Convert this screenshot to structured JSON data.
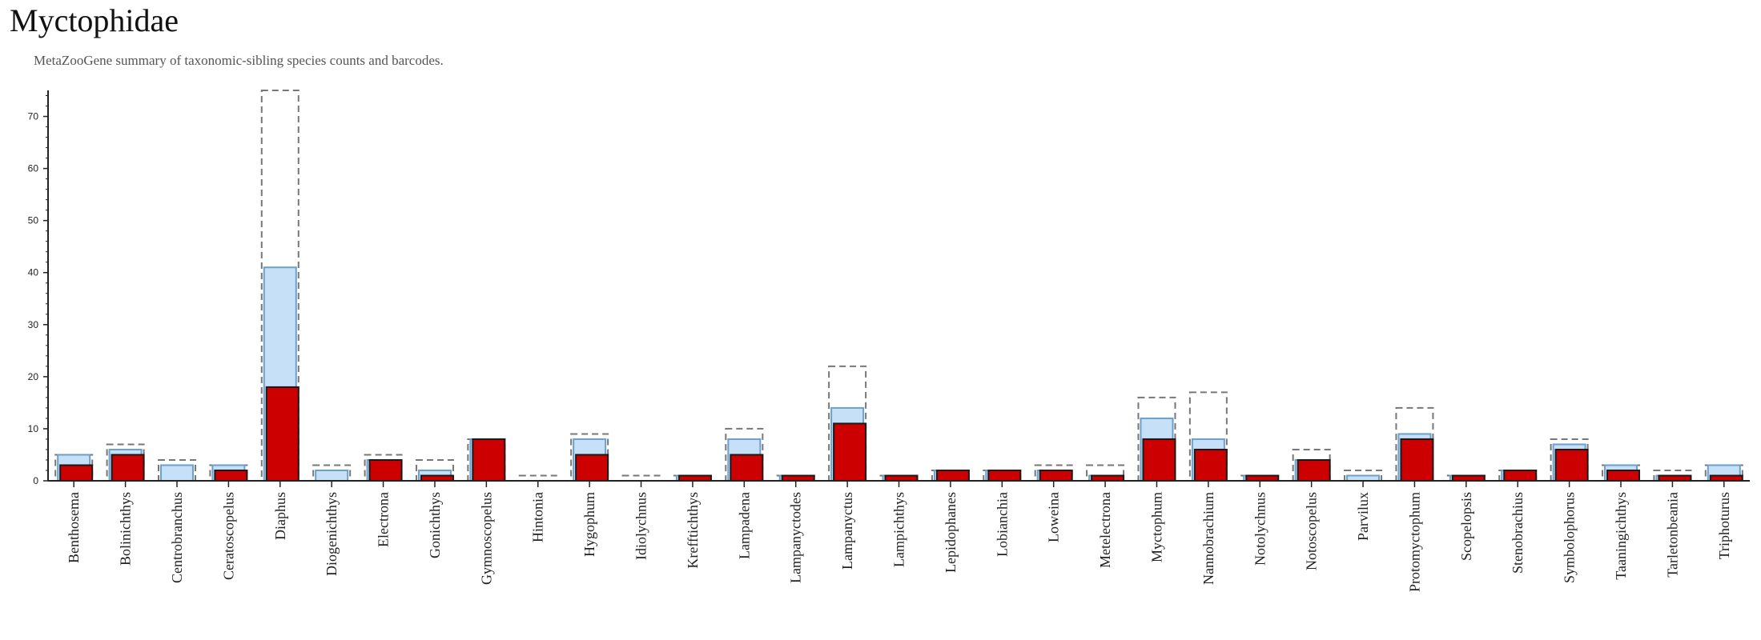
{
  "header": {
    "title": "Myctophidae",
    "subtitle": "MetaZooGene summary of taxonomic-sibling species counts and barcodes."
  },
  "colors": {
    "total_outline": "#777777",
    "light_fill": "#c6e0f8",
    "light_stroke": "#6d9fcb",
    "barcoded_fill": "#cc0000",
    "barcoded_stroke": "#1a1a1a",
    "axis": "#222222"
  },
  "chart_data": {
    "type": "bar",
    "title": "",
    "xlabel": "",
    "ylabel": "",
    "ylim": [
      0,
      75
    ],
    "yticks": [
      0,
      10,
      20,
      30,
      40,
      50,
      60,
      70
    ],
    "grid": false,
    "categories": [
      "Benthosema",
      "Bolinichthys",
      "Centrobranchus",
      "Ceratoscopelus",
      "Diaphus",
      "Diogenichthys",
      "Electrona",
      "Gonichthys",
      "Gymnoscopelus",
      "Hintonia",
      "Hygophum",
      "Idiolychnus",
      "Krefftichthys",
      "Lampadena",
      "Lampanyctodes",
      "Lampanyctus",
      "Lampichthys",
      "Lepidophanes",
      "Lobianchia",
      "Loweina",
      "Metelectrona",
      "Myctophum",
      "Nannobrachium",
      "Notolychnus",
      "Notoscopelus",
      "Parvilux",
      "Protomyctophum",
      "Scopelopsis",
      "Stenobrachius",
      "Symbolophorus",
      "Taaningichthys",
      "Tarletonbeania",
      "Triphoturus"
    ],
    "series": [
      {
        "values": [
          5,
          7,
          4,
          3,
          75,
          3,
          5,
          4,
          8,
          1,
          9,
          1,
          1,
          10,
          1,
          22,
          1,
          2,
          2,
          3,
          3,
          16,
          17,
          1,
          6,
          2,
          14,
          1,
          2,
          8,
          3,
          2,
          3
        ]
      },
      {
        "values": [
          5,
          6,
          3,
          3,
          41,
          2,
          4,
          2,
          8,
          0,
          8,
          0,
          1,
          8,
          1,
          14,
          1,
          2,
          2,
          2,
          1,
          12,
          8,
          1,
          4,
          1,
          9,
          1,
          2,
          7,
          3,
          1,
          3
        ]
      },
      {
        "values": [
          3,
          5,
          0,
          2,
          18,
          0,
          4,
          1,
          8,
          0,
          5,
          0,
          1,
          5,
          1,
          11,
          1,
          2,
          2,
          2,
          1,
          8,
          6,
          1,
          4,
          0,
          8,
          1,
          2,
          6,
          2,
          1,
          1
        ]
      }
    ]
  }
}
